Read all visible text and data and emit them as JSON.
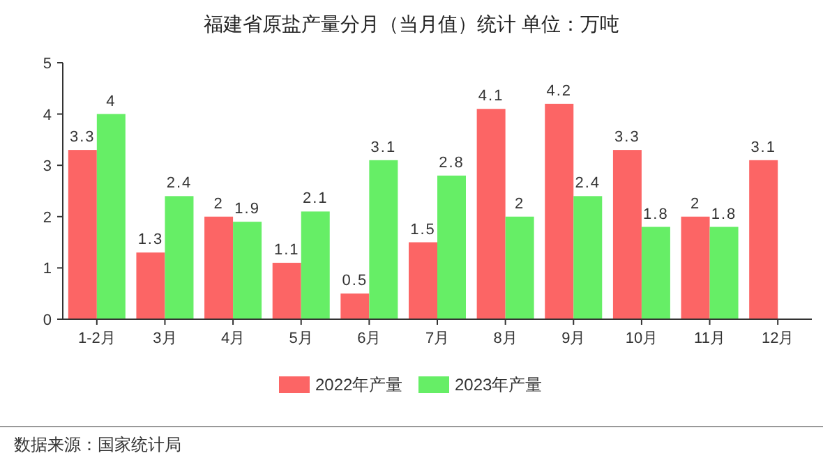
{
  "chart_data": {
    "type": "bar",
    "title": "福建省原盐产量分月（当月值）统计  单位：万吨",
    "categories": [
      "1-2月",
      "3月",
      "4月",
      "5月",
      "6月",
      "7月",
      "8月",
      "9月",
      "10月",
      "11月",
      "12月"
    ],
    "series": [
      {
        "name": "2022年产量",
        "color": "#fc6565",
        "values": [
          3.3,
          1.3,
          2,
          1.1,
          0.5,
          1.5,
          4.1,
          4.2,
          3.3,
          2,
          3.1
        ]
      },
      {
        "name": "2023年产量",
        "color": "#66ee66",
        "values": [
          4,
          2.4,
          1.9,
          2.1,
          3.1,
          2.8,
          2,
          2.4,
          1.8,
          1.8,
          null
        ]
      }
    ],
    "ylim": [
      0,
      5
    ],
    "yticks": [
      0,
      1,
      2,
      3,
      4,
      5
    ],
    "grid": false,
    "legend": "bottom",
    "data_labels": true,
    "annotations": [
      "数据来源：国家统计局"
    ]
  }
}
